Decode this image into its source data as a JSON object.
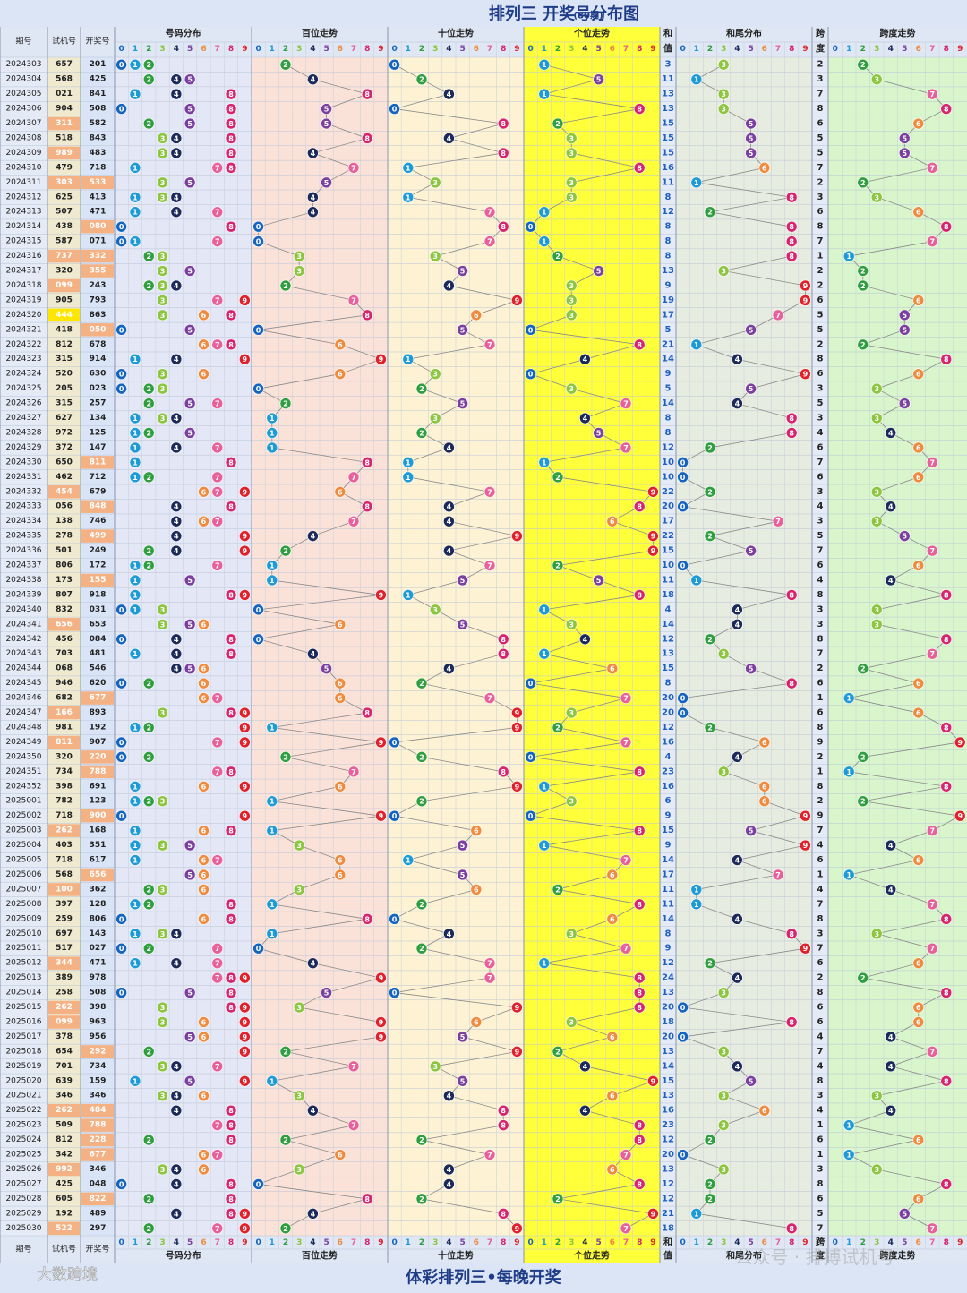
{
  "header": {
    "title": "排列三 开奖号分布图",
    "subtitle": "(80期)",
    "cols": {
      "period": "期号",
      "trial": "试机号",
      "draw": "开奖号"
    },
    "sections": {
      "dist": "号码分布",
      "hundreds": "百位走势",
      "tens": "十位走势",
      "units": "个位走势",
      "sum": [
        "和",
        "值"
      ],
      "tail": "和尾分布",
      "span": [
        "跨",
        "度"
      ],
      "spanTrend": "跨度走势"
    }
  },
  "digits": [
    "0",
    "1",
    "2",
    "3",
    "4",
    "5",
    "6",
    "7",
    "8",
    "9"
  ],
  "ball_colors": [
    "#1565c0",
    "#1e9ad6",
    "#2e9e3e",
    "#8cc63f",
    "#1b2a5a",
    "#7b3fa0",
    "#f08a3c",
    "#e8609a",
    "#d6246e",
    "#e0202a"
  ],
  "rows": [
    [
      "2024303",
      "657",
      "201",
      3,
      2
    ],
    [
      "2024304",
      "568",
      "425",
      11,
      3
    ],
    [
      "2024305",
      "021",
      "841",
      13,
      7
    ],
    [
      "2024306",
      "904",
      "508",
      13,
      8
    ],
    [
      "2024307",
      "311",
      "582",
      15,
      6
    ],
    [
      "2024308",
      "518",
      "843",
      15,
      5
    ],
    [
      "2024309",
      "989",
      "483",
      15,
      5
    ],
    [
      "2024310",
      "479",
      "718",
      16,
      7
    ],
    [
      "2024311",
      "303",
      "533",
      11,
      2
    ],
    [
      "2024312",
      "625",
      "413",
      8,
      3
    ],
    [
      "2024313",
      "507",
      "471",
      12,
      6
    ],
    [
      "2024314",
      "438",
      "080",
      8,
      8
    ],
    [
      "2024315",
      "587",
      "071",
      8,
      7
    ],
    [
      "2024316",
      "737",
      "332",
      8,
      1
    ],
    [
      "2024317",
      "320",
      "355",
      13,
      2
    ],
    [
      "2024318",
      "099",
      "243",
      9,
      2
    ],
    [
      "2024319",
      "905",
      "793",
      19,
      6
    ],
    [
      "2024320",
      "444",
      "863",
      17,
      5
    ],
    [
      "2024321",
      "418",
      "050",
      5,
      5
    ],
    [
      "2024322",
      "812",
      "678",
      21,
      2
    ],
    [
      "2024323",
      "315",
      "914",
      14,
      8
    ],
    [
      "2024324",
      "520",
      "630",
      9,
      6
    ],
    [
      "2024325",
      "205",
      "023",
      5,
      3
    ],
    [
      "2024326",
      "315",
      "257",
      14,
      5
    ],
    [
      "2024327",
      "627",
      "134",
      8,
      3
    ],
    [
      "2024328",
      "972",
      "125",
      8,
      4
    ],
    [
      "2024329",
      "372",
      "147",
      12,
      6
    ],
    [
      "2024330",
      "650",
      "811",
      10,
      7
    ],
    [
      "2024331",
      "462",
      "712",
      10,
      6
    ],
    [
      "2024332",
      "454",
      "679",
      22,
      3
    ],
    [
      "2024333",
      "056",
      "848",
      20,
      4
    ],
    [
      "2024334",
      "138",
      "746",
      17,
      3
    ],
    [
      "2024335",
      "278",
      "499",
      22,
      5
    ],
    [
      "2024336",
      "501",
      "249",
      15,
      7
    ],
    [
      "2024337",
      "806",
      "172",
      10,
      6
    ],
    [
      "2024338",
      "173",
      "155",
      11,
      4
    ],
    [
      "2024339",
      "807",
      "918",
      18,
      8
    ],
    [
      "2024340",
      "832",
      "031",
      4,
      3
    ],
    [
      "2024341",
      "656",
      "653",
      14,
      3
    ],
    [
      "2024342",
      "456",
      "084",
      12,
      8
    ],
    [
      "2024343",
      "703",
      "481",
      13,
      7
    ],
    [
      "2024344",
      "068",
      "546",
      15,
      2
    ],
    [
      "2024345",
      "946",
      "620",
      8,
      6
    ],
    [
      "2024346",
      "682",
      "677",
      20,
      1
    ],
    [
      "2024347",
      "166",
      "893",
      20,
      6
    ],
    [
      "2024348",
      "981",
      "192",
      12,
      8
    ],
    [
      "2024349",
      "811",
      "907",
      16,
      9
    ],
    [
      "2024350",
      "320",
      "220",
      4,
      2
    ],
    [
      "2024351",
      "734",
      "788",
      23,
      1
    ],
    [
      "2024352",
      "398",
      "691",
      16,
      8
    ],
    [
      "2025001",
      "782",
      "123",
      6,
      2
    ],
    [
      "2025002",
      "718",
      "900",
      9,
      9
    ],
    [
      "2025003",
      "262",
      "168",
      15,
      7
    ],
    [
      "2025004",
      "403",
      "351",
      9,
      4
    ],
    [
      "2025005",
      "718",
      "617",
      14,
      6
    ],
    [
      "2025006",
      "568",
      "656",
      17,
      1
    ],
    [
      "2025007",
      "100",
      "362",
      11,
      4
    ],
    [
      "2025008",
      "397",
      "128",
      11,
      7
    ],
    [
      "2025009",
      "259",
      "806",
      14,
      8
    ],
    [
      "2025010",
      "697",
      "143",
      8,
      3
    ],
    [
      "2025011",
      "517",
      "027",
      9,
      7
    ],
    [
      "2025012",
      "344",
      "471",
      12,
      6
    ],
    [
      "2025013",
      "389",
      "978",
      24,
      2
    ],
    [
      "2025014",
      "258",
      "508",
      13,
      8
    ],
    [
      "2025015",
      "262",
      "398",
      20,
      6
    ],
    [
      "2025016",
      "099",
      "963",
      18,
      6
    ],
    [
      "2025017",
      "378",
      "956",
      20,
      4
    ],
    [
      "2025018",
      "654",
      "292",
      13,
      7
    ],
    [
      "2025019",
      "701",
      "734",
      14,
      4
    ],
    [
      "2025020",
      "639",
      "159",
      15,
      8
    ],
    [
      "2025021",
      "346",
      "346",
      13,
      3
    ],
    [
      "2025022",
      "262",
      "484",
      16,
      4
    ],
    [
      "2025023",
      "509",
      "788",
      23,
      1
    ],
    [
      "2025024",
      "812",
      "228",
      12,
      6
    ],
    [
      "2025025",
      "342",
      "677",
      20,
      1
    ],
    [
      "2025026",
      "992",
      "346",
      13,
      3
    ],
    [
      "2025027",
      "425",
      "048",
      12,
      8
    ],
    [
      "2025028",
      "605",
      "822",
      12,
      6
    ],
    [
      "2025029",
      "192",
      "489",
      21,
      5
    ],
    [
      "2025030",
      "522",
      "297",
      18,
      7
    ]
  ],
  "footer": {
    "slogan": "体彩排列三•每晚开奖",
    "brand": "大数跨境",
    "watermark": "公众号 · 排搏试机号"
  }
}
